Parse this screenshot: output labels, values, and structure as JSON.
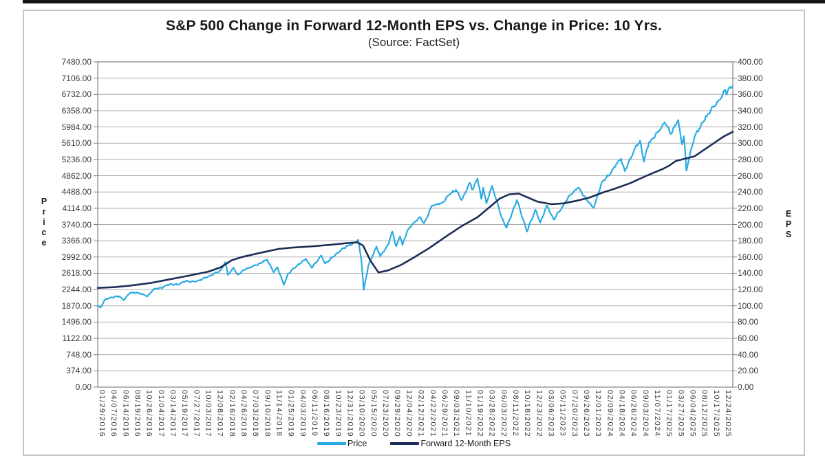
{
  "chart_data": {
    "type": "line",
    "title": "S&P 500 Change in Forward 12-Month EPS vs. Change in Price: 10 Yrs.",
    "subtitle": "(Source: FactSet)",
    "grid": true,
    "legend_position": "bottom",
    "left_axis": {
      "label": "Price",
      "min": 0,
      "max": 7480,
      "tick_step": 374,
      "ticks": [
        "7480.00",
        "7106.00",
        "6732.00",
        "6358.00",
        "5984.00",
        "5610.00",
        "5236.00",
        "4862.00",
        "4488.00",
        "4114.00",
        "3740.00",
        "3366.00",
        "2992.00",
        "2618.00",
        "2244.00",
        "1870.00",
        "1496.00",
        "1122.00",
        "748.00",
        "374.00",
        "0.00"
      ]
    },
    "right_axis": {
      "label": "EPS",
      "min": 0,
      "max": 400,
      "tick_step": 20,
      "ticks": [
        "400.00",
        "380.00",
        "360.00",
        "340.00",
        "320.00",
        "300.00",
        "280.00",
        "260.00",
        "240.00",
        "220.00",
        "200.00",
        "180.00",
        "160.00",
        "140.00",
        "120.00",
        "100.00",
        "80.00",
        "60.00",
        "40.00",
        "20.00",
        "0.00"
      ]
    },
    "x_axis": {
      "labels": [
        "01/29/2016",
        "04/07/2016",
        "06/14/2016",
        "08/19/2016",
        "10/26/2016",
        "01/04/2017",
        "03/14/2017",
        "05/19/2017",
        "07/27/2017",
        "10/03/2017",
        "12/08/2017",
        "02/16/2018",
        "04/26/2018",
        "07/03/2018",
        "09/10/2018",
        "11/14/2018",
        "01/25/2019",
        "04/03/2019",
        "06/11/2019",
        "08/16/2019",
        "10/23/2019",
        "12/31/2019",
        "03/10/2020",
        "05/15/2020",
        "07/23/2020",
        "09/29/2020",
        "12/04/2020",
        "02/12/2021",
        "04/22/2021",
        "06/29/2021",
        "09/03/2021",
        "11/10/2021",
        "01/19/2022",
        "03/28/2022",
        "06/03/2022",
        "08/11/2022",
        "10/18/2022",
        "12/23/2022",
        "03/06/2023",
        "05/11/2023",
        "07/20/2023",
        "09/26/2023",
        "12/01/2023",
        "02/09/2024",
        "04/18/2024",
        "06/26/2024",
        "09/03/2024",
        "11/07/2024",
        "01/17/2025",
        "03/27/2025",
        "06/04/2025",
        "08/12/2025",
        "10/17/2025",
        "12/24/2025"
      ]
    },
    "legend": [
      {
        "name": "Price",
        "color": "#29ABE2"
      },
      {
        "name": "Forward 12-Month EPS",
        "color": "#1C2E58"
      }
    ],
    "series": [
      {
        "name": "Price",
        "axis": "left",
        "color": "#29ABE2",
        "style": "jagged",
        "points": [
          [
            0,
            1870
          ],
          [
            0.004,
            1830
          ],
          [
            0.012,
            2020
          ],
          [
            0.022,
            2063
          ],
          [
            0.034,
            2091
          ],
          [
            0.041,
            2001
          ],
          [
            0.051,
            2173
          ],
          [
            0.061,
            2170
          ],
          [
            0.068,
            2150
          ],
          [
            0.078,
            2085
          ],
          [
            0.088,
            2250
          ],
          [
            0.103,
            2295
          ],
          [
            0.113,
            2368
          ],
          [
            0.125,
            2355
          ],
          [
            0.138,
            2435
          ],
          [
            0.154,
            2425
          ],
          [
            0.164,
            2480
          ],
          [
            0.179,
            2575
          ],
          [
            0.194,
            2690
          ],
          [
            0.201,
            2873
          ],
          [
            0.205,
            2581
          ],
          [
            0.214,
            2745
          ],
          [
            0.22,
            2585
          ],
          [
            0.234,
            2725
          ],
          [
            0.249,
            2800
          ],
          [
            0.267,
            2931
          ],
          [
            0.277,
            2641
          ],
          [
            0.283,
            2760
          ],
          [
            0.293,
            2351
          ],
          [
            0.3,
            2610
          ],
          [
            0.313,
            2785
          ],
          [
            0.328,
            2946
          ],
          [
            0.337,
            2744
          ],
          [
            0.352,
            3026
          ],
          [
            0.358,
            2840
          ],
          [
            0.369,
            2977
          ],
          [
            0.376,
            3067
          ],
          [
            0.391,
            3235
          ],
          [
            0.401,
            3290
          ],
          [
            0.41,
            3386
          ],
          [
            0.415,
            2954
          ],
          [
            0.419,
            2237
          ],
          [
            0.426,
            2790
          ],
          [
            0.439,
            3232
          ],
          [
            0.445,
            3009
          ],
          [
            0.457,
            3270
          ],
          [
            0.464,
            3580
          ],
          [
            0.47,
            3237
          ],
          [
            0.476,
            3465
          ],
          [
            0.48,
            3270
          ],
          [
            0.487,
            3585
          ],
          [
            0.496,
            3750
          ],
          [
            0.507,
            3910
          ],
          [
            0.514,
            3768
          ],
          [
            0.527,
            4180
          ],
          [
            0.542,
            4230
          ],
          [
            0.552,
            4410
          ],
          [
            0.564,
            4537
          ],
          [
            0.573,
            4300
          ],
          [
            0.586,
            4698
          ],
          [
            0.59,
            4538
          ],
          [
            0.598,
            4797
          ],
          [
            0.604,
            4326
          ],
          [
            0.607,
            4589
          ],
          [
            0.612,
            4225
          ],
          [
            0.621,
            4631
          ],
          [
            0.636,
            3901
          ],
          [
            0.644,
            3667
          ],
          [
            0.66,
            4305
          ],
          [
            0.676,
            3577
          ],
          [
            0.689,
            4080
          ],
          [
            0.697,
            3783
          ],
          [
            0.707,
            4180
          ],
          [
            0.718,
            3856
          ],
          [
            0.733,
            4169
          ],
          [
            0.744,
            4425
          ],
          [
            0.757,
            4589
          ],
          [
            0.769,
            4330
          ],
          [
            0.781,
            4117
          ],
          [
            0.794,
            4720
          ],
          [
            0.804,
            4860
          ],
          [
            0.818,
            5150
          ],
          [
            0.824,
            5254
          ],
          [
            0.83,
            4967
          ],
          [
            0.845,
            5460
          ],
          [
            0.854,
            5667
          ],
          [
            0.86,
            5186
          ],
          [
            0.868,
            5630
          ],
          [
            0.875,
            5730
          ],
          [
            0.882,
            5870
          ],
          [
            0.893,
            6090
          ],
          [
            0.903,
            5827
          ],
          [
            0.914,
            6144
          ],
          [
            0.92,
            5580
          ],
          [
            0.923,
            5770
          ],
          [
            0.927,
            4983
          ],
          [
            0.934,
            5460
          ],
          [
            0.941,
            5800
          ],
          [
            0.947,
            5945
          ],
          [
            0.953,
            6090
          ],
          [
            0.959,
            6230
          ],
          [
            0.966,
            6390
          ],
          [
            0.972,
            6466
          ],
          [
            0.978,
            6600
          ],
          [
            0.984,
            6712
          ],
          [
            0.988,
            6840
          ],
          [
            0.99,
            6725
          ],
          [
            0.994,
            6880
          ],
          [
            1,
            6920
          ]
        ]
      },
      {
        "name": "Forward 12-Month EPS",
        "axis": "right",
        "color": "#1C2E58",
        "style": "smooth",
        "points": [
          [
            0,
            122
          ],
          [
            0.027,
            123
          ],
          [
            0.053,
            125
          ],
          [
            0.083,
            128
          ],
          [
            0.113,
            132.5
          ],
          [
            0.143,
            137
          ],
          [
            0.174,
            142
          ],
          [
            0.194,
            147.5
          ],
          [
            0.211,
            156
          ],
          [
            0.227,
            160
          ],
          [
            0.255,
            165
          ],
          [
            0.285,
            170
          ],
          [
            0.305,
            171.5
          ],
          [
            0.335,
            173
          ],
          [
            0.366,
            175
          ],
          [
            0.391,
            177
          ],
          [
            0.409,
            178
          ],
          [
            0.418,
            174
          ],
          [
            0.429,
            156
          ],
          [
            0.442,
            141
          ],
          [
            0.457,
            143.5
          ],
          [
            0.477,
            150
          ],
          [
            0.497,
            159
          ],
          [
            0.522,
            171
          ],
          [
            0.548,
            185
          ],
          [
            0.573,
            198
          ],
          [
            0.598,
            209
          ],
          [
            0.618,
            222
          ],
          [
            0.633,
            232
          ],
          [
            0.648,
            237
          ],
          [
            0.663,
            238
          ],
          [
            0.678,
            233
          ],
          [
            0.693,
            228
          ],
          [
            0.714,
            225
          ],
          [
            0.733,
            226
          ],
          [
            0.753,
            229
          ],
          [
            0.774,
            233
          ],
          [
            0.794,
            239
          ],
          [
            0.814,
            244
          ],
          [
            0.839,
            251
          ],
          [
            0.864,
            260
          ],
          [
            0.889,
            268
          ],
          [
            0.899,
            272
          ],
          [
            0.91,
            278
          ],
          [
            0.925,
            281
          ],
          [
            0.94,
            284
          ],
          [
            0.955,
            292
          ],
          [
            0.97,
            300
          ],
          [
            0.985,
            308
          ],
          [
            1,
            314
          ]
        ]
      }
    ],
    "colors": {
      "grid": "#ABABAB",
      "axis": "#7F7F7F",
      "box_border": "#C6C6C2",
      "text": "#3A3A3A"
    }
  }
}
